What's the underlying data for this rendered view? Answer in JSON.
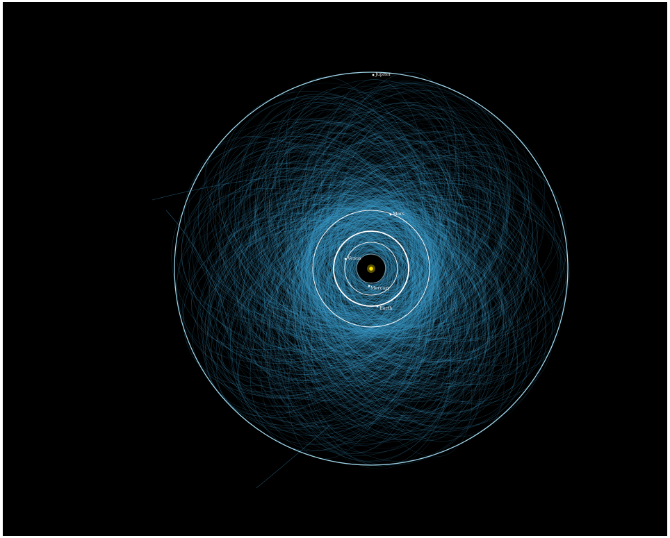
{
  "title": "",
  "colors": {
    "background": "#000000",
    "border": "#ffffff",
    "asteroid_orbits": "#3fa2d2",
    "jupiter_orbit": "#9fd6ea",
    "inner_orbits": "#ffffff",
    "sun": "#ffe600",
    "labels": "#e8e8e8"
  },
  "sun": {
    "name": "Sun",
    "icon": "sun-icon"
  },
  "planets": [
    {
      "key": "jupiter",
      "label": "Jupiter"
    },
    {
      "key": "mars",
      "label": "Mars"
    },
    {
      "key": "venus",
      "label": "Venus"
    },
    {
      "key": "mercury",
      "label": "Mercury"
    },
    {
      "key": "earth",
      "label": "Earth"
    }
  ]
}
